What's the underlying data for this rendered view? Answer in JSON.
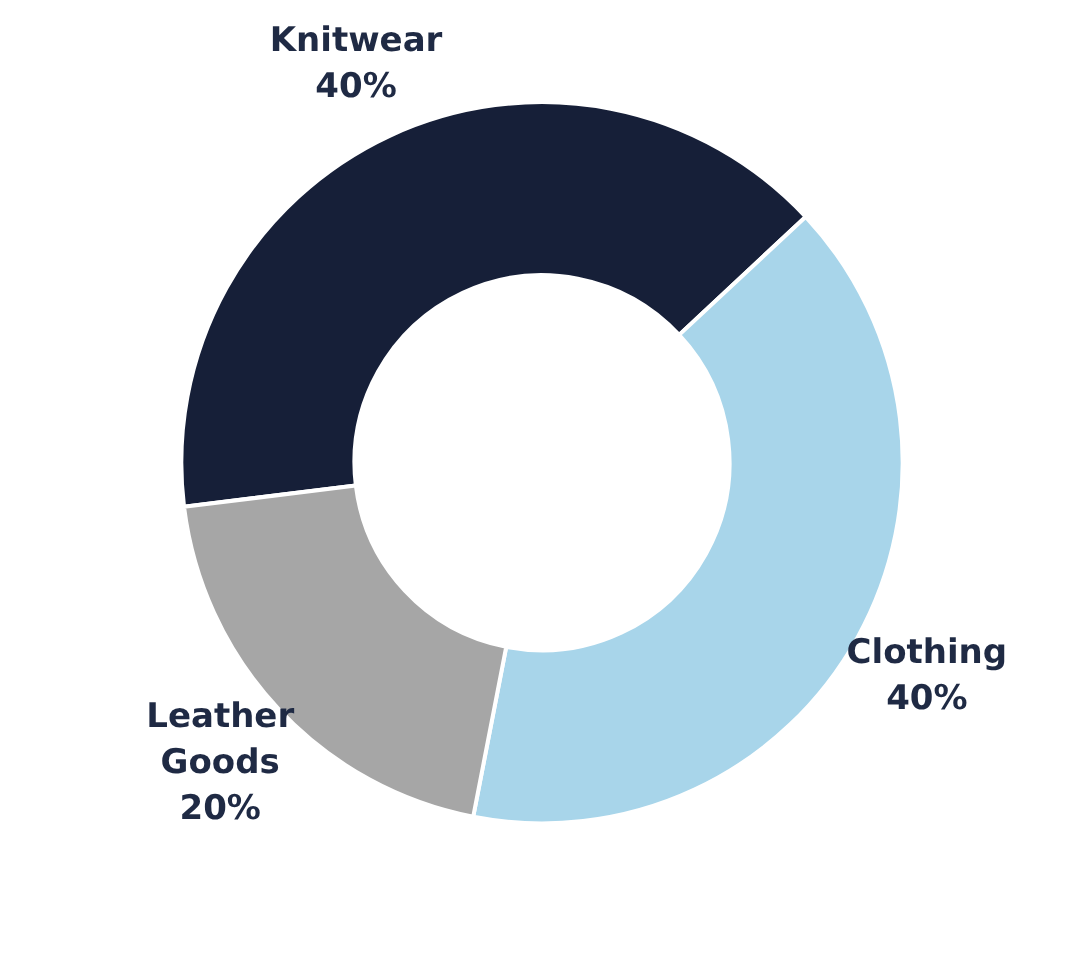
{
  "chart_data": {
    "type": "donut",
    "categories": [
      "Knitwear",
      "Clothing",
      "Leather Goods"
    ],
    "values": [
      40,
      40,
      20
    ],
    "colors": [
      "#161f38",
      "#a8d5ea",
      "#a6a6a6"
    ],
    "value_labels": [
      "40%",
      "40%",
      "20%"
    ]
  }
}
